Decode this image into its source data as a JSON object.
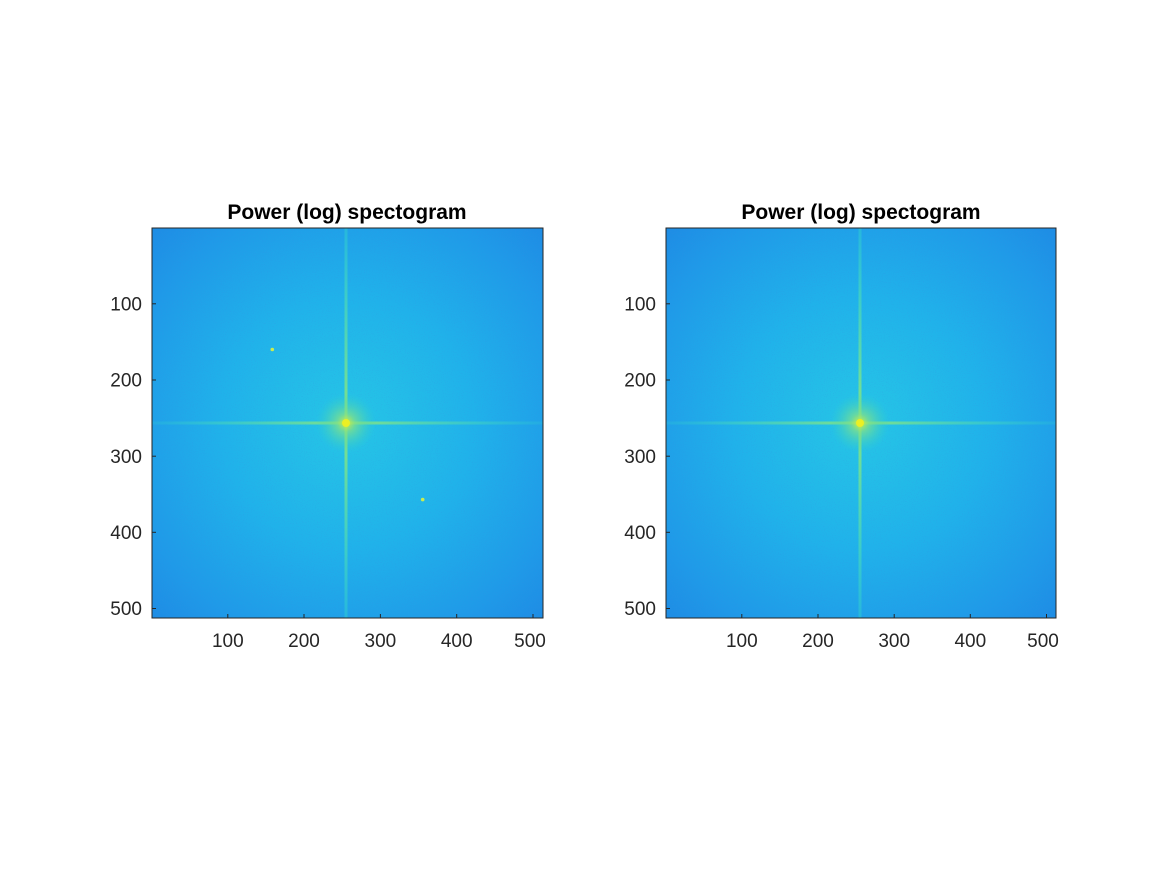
{
  "chart_data": [
    {
      "type": "heatmap",
      "title": "Power (log) spectogram",
      "xlabel": "",
      "ylabel": "",
      "xlim": [
        0.5,
        512.5
      ],
      "ylim": [
        0.5,
        512.5
      ],
      "y_reversed": true,
      "xticks": [
        100,
        200,
        300,
        400,
        500
      ],
      "yticks": [
        100,
        200,
        300,
        400,
        500
      ],
      "xtick_labels": [
        "100",
        "200",
        "300",
        "400",
        "500"
      ],
      "ytick_labels": [
        "100",
        "200",
        "300",
        "400",
        "500"
      ],
      "colormap": "parula",
      "base_color": "#1e8fe6",
      "peak_color": "#e8f030",
      "center": [
        257,
        257
      ],
      "artifacts": [
        [
          158,
          160
        ],
        [
          355,
          357
        ]
      ],
      "grid": false
    },
    {
      "type": "heatmap",
      "title": "Power (log) spectogram",
      "xlabel": "",
      "ylabel": "",
      "xlim": [
        0.5,
        512.5
      ],
      "ylim": [
        0.5,
        512.5
      ],
      "y_reversed": true,
      "xticks": [
        100,
        200,
        300,
        400,
        500
      ],
      "yticks": [
        100,
        200,
        300,
        400,
        500
      ],
      "xtick_labels": [
        "100",
        "200",
        "300",
        "400",
        "500"
      ],
      "ytick_labels": [
        "100",
        "200",
        "300",
        "400",
        "500"
      ],
      "colormap": "parula",
      "base_color": "#1e8fe6",
      "peak_color": "#e8f030",
      "center": [
        257,
        257
      ],
      "artifacts": [],
      "grid": false
    }
  ]
}
